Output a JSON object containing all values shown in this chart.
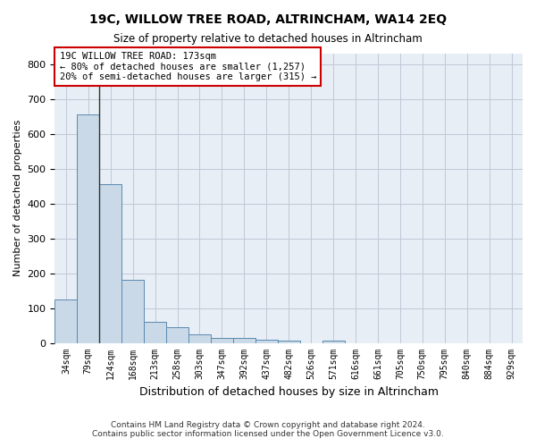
{
  "title": "19C, WILLOW TREE ROAD, ALTRINCHAM, WA14 2EQ",
  "subtitle": "Size of property relative to detached houses in Altrincham",
  "xlabel": "Distribution of detached houses by size in Altrincham",
  "ylabel": "Number of detached properties",
  "categories": [
    "34sqm",
    "79sqm",
    "124sqm",
    "168sqm",
    "213sqm",
    "258sqm",
    "303sqm",
    "347sqm",
    "392sqm",
    "437sqm",
    "482sqm",
    "526sqm",
    "571sqm",
    "616sqm",
    "661sqm",
    "705sqm",
    "750sqm",
    "795sqm",
    "840sqm",
    "884sqm",
    "929sqm"
  ],
  "values": [
    125,
    655,
    455,
    182,
    60,
    45,
    25,
    13,
    13,
    10,
    7,
    0,
    7,
    0,
    0,
    0,
    0,
    0,
    0,
    0,
    0
  ],
  "bar_color": "#c9d9e8",
  "bar_edge_color": "#5a8ab0",
  "highlight_bar_index": 2,
  "highlight_line_index": 2,
  "annotation_text": "19C WILLOW TREE ROAD: 173sqm\n← 80% of detached houses are smaller (1,257)\n20% of semi-detached houses are larger (315) →",
  "annotation_box_color": "#ffffff",
  "annotation_box_edge_color": "#cc0000",
  "ylim": [
    0,
    830
  ],
  "grid_color": "#c0c8d8",
  "bg_color": "#e8eef5",
  "footer": "Contains HM Land Registry data © Crown copyright and database right 2024.\nContains public sector information licensed under the Open Government Licence v3.0."
}
